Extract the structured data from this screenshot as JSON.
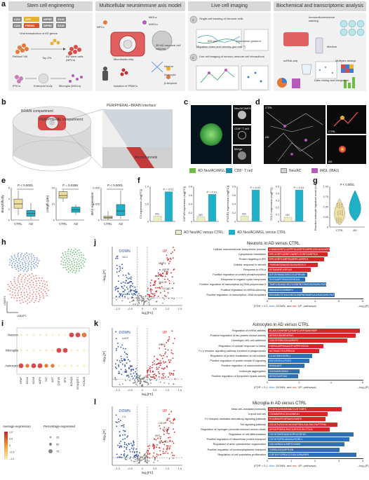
{
  "panels": {
    "a": "a",
    "b": "b",
    "c": "c",
    "d": "d",
    "e": "e",
    "f": "f",
    "g": "g",
    "h": "h",
    "i": "i",
    "j": "j",
    "k": "k",
    "l": "l"
  },
  "a": {
    "headers": [
      "Stem cell engineering",
      "Multicellular neuroimmune axis model",
      "Live cell imaging",
      "Biochemical and transcriptomic analysis"
    ],
    "genes": [
      "CAG",
      "APP",
      "WPRE",
      "SV40",
      "CAG",
      "PSEN1",
      "WPRE",
      "SV40"
    ],
    "text": {
      "viral": "Viral transduction of AD genes",
      "refnsc": "ReNcell VM",
      "top": "Top 2%",
      "adnsc": "AD stem cells (NPCs)",
      "ipsc": "iPSCs",
      "eb": "Embryoid body",
      "microglia": "Microglia (iMGLs)",
      "npcs": "NPCs",
      "imgls": "iMGLs",
      "hmgls": "hMGLs",
      "chip": "Microfluidic chip",
      "model3d": "3D AD neuronal cell cultures",
      "pbmc": "Isolation of PBMCs",
      "neuron": "Neuron",
      "astro": "Astrocyte",
      "ab": "β-Amyloid",
      "live1": "Single-cell tracking of immune cells",
      "live_um": "500 μm",
      "chemo": "Chemokine gradient",
      "migr": "Migration index and velocity (μm min⁻¹)",
      "live2": "Live cell imaging of neuron–immune cell interactions",
      "n1": "1",
      "n2": "2",
      "immuno": "Immunofluorescence staining",
      "medium": "Medium",
      "scrna": "scRNA-seq",
      "dataint": "Data mining and integration",
      "multi": "Multiplex assays"
    }
  },
  "b": {
    "brain": "BRAIN compartment",
    "periph": "PERIPHERAL compartment",
    "interface": "PERIPHERAL–BRAIN interface",
    "micro": "Microchannels"
  },
  "c": {
    "labels": [
      "Neu/AC/iMGL",
      "CD8⁺ T cell",
      "Merge"
    ],
    "legend": [
      "AD Neu/AC/iMGL",
      "CD8⁺ T cell"
    ],
    "colors": [
      "#6dbd45",
      "#1e8fa8"
    ]
  },
  "d": {
    "ctrl": "CTRL",
    "ad": "AD",
    "legend": [
      "Neu/AC",
      "iMGL (IBA1)"
    ],
    "colors": [
      "#d4d4d4",
      "#b65bb8"
    ]
  },
  "e": {
    "plots": [
      {
        "ylabel": "Branch/body",
        "p": "P < 0.0001",
        "cats": [
          "CTRL",
          "AD"
        ],
        "ctrl": {
          "q1": 2.2,
          "med": 3.0,
          "q3": 3.9,
          "lo": 0.9,
          "hi": 5.5
        },
        "ad": {
          "q1": 0.7,
          "med": 1.2,
          "q3": 1.8,
          "lo": 0.1,
          "hi": 3.2
        },
        "ylim": [
          0,
          6
        ],
        "ticks": [
          "0",
          "2",
          "4",
          "6"
        ]
      },
      {
        "ylabel": "Length (μm)",
        "p": "P = 0.0288",
        "cats": [
          "CTRL",
          "AD"
        ],
        "ctrl": {
          "q1": 17,
          "med": 19,
          "q3": 22,
          "lo": 14,
          "hi": 23
        },
        "ad": {
          "q1": 6,
          "med": 8,
          "q3": 10,
          "lo": 4,
          "hi": 12
        },
        "ylim": [
          0,
          25
        ],
        "ticks": [
          "0",
          "10",
          "20"
        ]
      },
      {
        "ylabel": "IBA1 expression",
        "p": "P < 0.0001",
        "cats": [
          "CTRL",
          "AD"
        ],
        "ctrl": {
          "q1": 120,
          "med": 200,
          "q3": 300,
          "lo": 20,
          "hi": 700
        },
        "ad": {
          "q1": 350,
          "med": 700,
          "q3": 1200,
          "lo": 100,
          "hi": 2300
        },
        "ylim": [
          0,
          2500
        ],
        "ticks": [
          "0",
          "1,000",
          "2,000"
        ]
      }
    ]
  },
  "f": {
    "plots": [
      {
        "ylabel": "C3 expression (log[FC])",
        "ns": "NS",
        "p": "P < 0.01",
        "vals": [
          0.15,
          0.85
        ],
        "ylim": [
          0,
          1
        ],
        "ticks": [
          "0",
          "0.5",
          "1.0"
        ]
      },
      {
        "ylabel": "CSF1R expression (log[FC])",
        "ns": "NS",
        "p": "P < 0.01",
        "vals": [
          0.1,
          0.62
        ],
        "ylim": [
          0,
          0.8
        ],
        "ticks": [
          "0",
          "0.2",
          "0.4",
          "0.6",
          "0.8"
        ]
      },
      {
        "ylabel": "IFNGR1 expression (log[FC])",
        "ns": "NS",
        "p": "P < 0.01",
        "vals": [
          0.12,
          0.72
        ],
        "ylim": [
          0,
          0.8
        ],
        "ticks": [
          "0",
          "0.2",
          "0.4",
          "0.6",
          "0.8"
        ]
      },
      {
        "ylabel": "CCL2 expression (log[FC])",
        "ns": "NS",
        "p": "P < 0.01",
        "vals": [
          0.06,
          0.45
        ],
        "ylim": [
          0,
          0.5
        ],
        "ticks": [
          "0",
          "0.1",
          "0.2",
          "0.3",
          "0.4",
          "0.5"
        ]
      }
    ],
    "legend": [
      "AD Neu/AC versus CTRL",
      "AD Neu/AC/iMGL versus CTRL"
    ],
    "colors": [
      "#eeeec0",
      "#1fb0c8"
    ]
  },
  "g": {
    "ylabel": "Reactive astrocyte signature score (a.u.)",
    "p": "P < 0.0001",
    "cats": [
      "CTRL",
      "AD"
    ],
    "ticks": [
      "0",
      "0.25",
      "0.50",
      "0.75",
      "1.00"
    ]
  },
  "h": {
    "clusters": [
      "Neuron",
      "Astrocyte",
      "Microglia"
    ],
    "xlab": "UMAP1",
    "ylab": "UMAP2",
    "colors": [
      "#4a79c4",
      "#e65350",
      "#3aa84a"
    ]
  },
  "i": {
    "rows": [
      "Neuron",
      "Microglia",
      "Astrocyte"
    ],
    "cols": [
      "GFAP",
      "SOX2",
      "SOX9",
      "AQP4",
      "SLT",
      "AGT",
      "CSF1R",
      "SPI1",
      "KCNQ3",
      "KCNQ5T1",
      "HCN1B"
    ],
    "avg": "Average expression",
    "pct": "Percentage expressed",
    "avgticks": [
      "1.0",
      "0.5",
      "0",
      "–0.5",
      "–1.0"
    ],
    "pctvals": [
      "25",
      "50",
      "75"
    ]
  },
  "volcano": {
    "down": "DOWN",
    "up": "UP",
    "xlab": "log₂[FC]",
    "ylab": "–log₁₀[P]",
    "xticks": [
      "–1.0",
      "–0.5",
      "0",
      "0.5",
      "1.0",
      "1.5"
    ],
    "j": {
      "title": "Neurons in AD versus CTRL",
      "genes": [
        "GLU",
        "MMP2",
        "APOE",
        "HMGA1",
        "SDK2",
        "DCLK1"
      ]
    },
    "k": {
      "title": "Astrocytes in AD versus CTRL",
      "genes": [
        "IL6ST",
        "SOX4"
      ]
    },
    "l": {
      "title": "Microglia in AD versus CTRL",
      "genes": [
        "C3",
        "CD14",
        "C1QB",
        "IGF1",
        "SELPLG"
      ]
    }
  },
  "go": {
    "footer_pre": "(FDR < 0.1,",
    "footer_blue": "blue",
    "footer_mid": ", DOWN- and",
    "footer_red": "red",
    "footer_post": ", UP- pathways)",
    "xlab": "–log₁₀[P]",
    "j": {
      "ticks": [
        "0",
        "2",
        "4",
        "6",
        "8"
      ],
      "xmax": 8,
      "terms": [
        {
          "t": "Cellular macromolecule biosynthetic process",
          "v": 5.2,
          "up": true,
          "g": "CAMK2B/RPL11/PPP3CA/RPS14/RPL12/CALM1/RPL5/RPL34"
        },
        {
          "t": "Cytoplasmic translation",
          "v": 5.0,
          "up": true,
          "g": "RPL11/RPL32/RPL38/RPL37/RPL5/RPS14"
        },
        {
          "t": "Protein targeting to ER",
          "v": 4.7,
          "up": true,
          "g": "RPL11/RPL3/RPS14/RPL12/RPL5"
        },
        {
          "t": "Cellular response to steroid",
          "v": 4.2,
          "up": true,
          "g": "YWHAB/SMAD3/CALM1/DDX17"
        },
        {
          "t": "Response to IFN-α",
          "v": 3.6,
          "up": true,
          "g": "IFITM3/IRF1/SP100"
        },
        {
          "t": "Positive regulation of protein phosphorylation",
          "v": 3.3,
          "up": false,
          "g": "IGF1R/SMAD3/ROCK1/PRKAB"
        },
        {
          "t": "Response to organic cyclic compound",
          "v": 3.1,
          "up": false,
          "g": "SOX9/APP/SMAD3/NR4A1"
        },
        {
          "t": "Positive regulation of transcription by RNA polymerase II",
          "v": 4.9,
          "up": false,
          "g": "TIMP1/SOX4/CHD7/CEBPB/TSHZ/GATA3/KLF6/SMARCA4/MKX"
        },
        {
          "t": "Positive regulation of miRNA silencing",
          "v": 2.9,
          "up": false,
          "g": "SMAD3/SOX9/BMP4"
        },
        {
          "t": "Positive regulation of transcription, DNA templated",
          "v": 5.6,
          "up": false,
          "g": "SOX4/NOTCH1/CHD7/CEBPB/SMARCA4/GATA3/KLF6/TIMP1"
        }
      ]
    },
    "k": {
      "ticks": [
        "0",
        "2",
        "4",
        "6"
      ],
      "xmax": 6,
      "terms": [
        {
          "t": "Regulation of mRNA stability",
          "v": 5.8,
          "up": true,
          "g": "ELAVL1/HNRNPC/PABPC1/RPS6/KHSRP"
        },
        {
          "t": "Positive regulation of tau-protein kinase activity",
          "v": 5.5,
          "up": true,
          "g": "APOE/CDK5R1/PIN1"
        },
        {
          "t": "Homotypic cell–cell adhesion",
          "v": 5.0,
          "up": true,
          "g": "CD47/ITGB1/CD44/PKP2"
        },
        {
          "t": "Regulation of cellular response to stress",
          "v": 3.5,
          "up": true,
          "g": "HSPA1A/PRKAA/ATF4/PPP1R15A"
        },
        {
          "t": "Fc γ receptor signaling pathway involved in phagocytosis",
          "v": 3.2,
          "up": true,
          "g": "ACTB/ACTG1/PRKCD"
        },
        {
          "t": "Regulation of protein localization to cell surface",
          "v": 2.8,
          "up": false,
          "g": "CLU/CD81/SORL1"
        },
        {
          "t": "Positive regulation of protein kinase B signaling",
          "v": 2.6,
          "up": false,
          "g": "IGF1/SORL1/FGF2"
        },
        {
          "t": "Positive regulation of vasoconstriction",
          "v": 2.3,
          "up": false,
          "g": "EDN1/AGT"
        },
        {
          "t": "Leukocyte aggregation",
          "v": 2.0,
          "up": false,
          "g": "S100A8/S100A9"
        },
        {
          "t": "Positive regulation of lipoprotein lipase activity",
          "v": 1.9,
          "up": false,
          "g": "APOC2/APOA5"
        }
      ]
    },
    "l": {
      "ticks": [
        "0",
        "1",
        "2",
        "3",
        "4"
      ],
      "xmax": 4,
      "terms": [
        {
          "t": "Mast cell–mediated immunity",
          "v": 3.1,
          "up": true,
          "g": "FCER1G/SNX/RAB27A/STXBP2"
        },
        {
          "t": "Import into cell",
          "v": 2.5,
          "up": true,
          "g": "CD36/MSR1/CD14/ABCA1"
        },
        {
          "t": "Fc receptor-mediated stimulatory signaling pathway",
          "v": 2.4,
          "up": true,
          "g": "FCGR2A/FCGR3A/SYK/BTK"
        },
        {
          "t": "Toll signaling pathway",
          "v": 2.9,
          "up": true,
          "g": "CD14/TLR2/CHCHD2/APOE/LGALS9/LYN/PTPN6"
        },
        {
          "t": "Regulation of hydrogen peroxide-induced neuron death",
          "v": 2.6,
          "up": true,
          "g": "APOE/PSEN1/RAC1/ATOX1/SLC7A11"
        },
        {
          "t": "Regulation of cell differentiation",
          "v": 3.6,
          "up": false,
          "g": "CD74/TNF/RUNX1/SPI1/CSF1R"
        },
        {
          "t": "Positive regulation of intracellular protein transport",
          "v": 3.4,
          "up": false,
          "g": "CD74/TGFB1/ANXA1/SORL1"
        },
        {
          "t": "Regulation of actin cytoskeleton organization",
          "v": 3.2,
          "up": false,
          "g": "CDC42/RAC1/ARPC2/WAS"
        },
        {
          "t": "Positive regulation of nucleocytoplasmic transport",
          "v": 3.0,
          "up": false,
          "g": "TGFB1/CD44/PTK2B"
        },
        {
          "t": "Regulation of cell population proliferation",
          "v": 3.7,
          "up": false,
          "g": "CSF1R/TGFB1/CD74/IL10RA/IRF8"
        }
      ]
    }
  }
}
